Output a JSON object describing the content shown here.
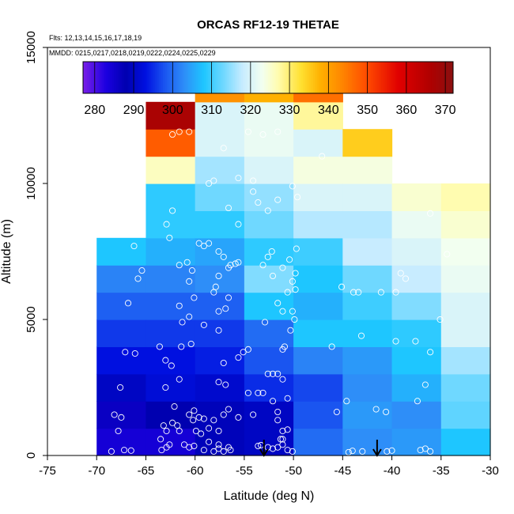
{
  "chart_data": {
    "type": "heatmap",
    "title": "ORCAS RF12-19 THETAE",
    "subtitle_flights": "Flts: 12,13,14,15,16,17,18,19",
    "subtitle_dates": "MMDD: 0215,0217,0218,0219,0222,0224,0225,0229",
    "xlabel": "Latitude (deg N)",
    "ylabel": "Altitude (m)",
    "xlim": [
      -75,
      -30
    ],
    "ylim": [
      0,
      15000
    ],
    "xticks": [
      -75,
      -70,
      -65,
      -60,
      -55,
      -50,
      -45,
      -40,
      -35,
      -30
    ],
    "xtick_labels": [
      "-75",
      "-70",
      "-65",
      "-60",
      "-55",
      "-50",
      "-45",
      "-40",
      "-35",
      "-30"
    ],
    "yticks": [
      0,
      5000,
      10000,
      15000
    ],
    "ytick_labels": [
      "0",
      "5000",
      "10000",
      "15000"
    ],
    "colorbar": {
      "min": 277,
      "max": 372,
      "ticks": [
        280,
        290,
        300,
        310,
        320,
        330,
        340,
        350,
        360,
        370
      ],
      "tick_labels": [
        "280",
        "290",
        "300",
        "310",
        "320",
        "330",
        "340",
        "350",
        "360",
        "370"
      ],
      "stops": [
        [
          277,
          "#7a1fe8"
        ],
        [
          283,
          "#1a00e0"
        ],
        [
          288,
          "#0000b0"
        ],
        [
          293,
          "#0010e0"
        ],
        [
          298,
          "#1a55f0"
        ],
        [
          303,
          "#2e8ef8"
        ],
        [
          308,
          "#1ec6ff"
        ],
        [
          313,
          "#6fd8ff"
        ],
        [
          318,
          "#c8ecff"
        ],
        [
          323,
          "#f2fff0"
        ],
        [
          327,
          "#fffcb0"
        ],
        [
          333,
          "#ffe030"
        ],
        [
          338,
          "#ffb000"
        ],
        [
          343,
          "#ff8a00"
        ],
        [
          350,
          "#ff4a00"
        ],
        [
          358,
          "#e00000"
        ],
        [
          366,
          "#b00000"
        ],
        [
          372,
          "#8a1010"
        ]
      ]
    },
    "bin_width_deg": 5,
    "bin_height_m": 1000,
    "columns": [
      {
        "x0": -70,
        "values": [
          284,
          286,
          290,
          293,
          296,
          299,
          302,
          308
        ]
      },
      {
        "x0": -65,
        "values": [
          284,
          288,
          292,
          293,
          296,
          299,
          302,
          306,
          309,
          309,
          326,
          348,
          367
        ]
      },
      {
        "x0": -60,
        "values": [
          289,
          289,
          291,
          294,
          296,
          299,
          303,
          305,
          309,
          313,
          316,
          320,
          320,
          342
        ]
      },
      {
        "x0": -55,
        "values": [
          290,
          290,
          295,
          298,
          300,
          308,
          314,
          309,
          313,
          315,
          320,
          322,
          322,
          338
        ]
      },
      {
        "x0": -50,
        "values": [
          300,
          298,
          297,
          302,
          308,
          306,
          308,
          310,
          317,
          320,
          324,
          320,
          328,
          346
        ]
      },
      {
        "x0": -45,
        "values": [
          303,
          304,
          303,
          304,
          308,
          310,
          313,
          318,
          317,
          320,
          324,
          335
        ]
      },
      {
        "x0": -40,
        "values": [
          304,
          303,
          306,
          308,
          309,
          314,
          318,
          320,
          322,
          325
        ]
      },
      {
        "x0": -35,
        "values": [
          308,
          312,
          313,
          316,
          320,
          320,
          322,
          323,
          325,
          327
        ]
      }
    ],
    "dropsonde_arrows": [
      -53,
      -41.5
    ],
    "scatter_points": [
      [
        -68.5,
        150
      ],
      [
        -67.2,
        200
      ],
      [
        -66.5,
        180
      ],
      [
        -67.8,
        900
      ],
      [
        -68.2,
        1500
      ],
      [
        -67.5,
        1400
      ],
      [
        -67.6,
        2500
      ],
      [
        -67.1,
        3800
      ],
      [
        -66.1,
        3750
      ],
      [
        -66.8,
        5600
      ],
      [
        -65.8,
        6500
      ],
      [
        -65.4,
        6800
      ],
      [
        -66.2,
        7700
      ],
      [
        -63.4,
        200
      ],
      [
        -62.9,
        300
      ],
      [
        -63.5,
        600
      ],
      [
        -62.6,
        400
      ],
      [
        -63.2,
        1100
      ],
      [
        -62.9,
        900
      ],
      [
        -62.3,
        1200
      ],
      [
        -62.1,
        1800
      ],
      [
        -61.8,
        1100
      ],
      [
        -61.6,
        900
      ],
      [
        -61.1,
        400
      ],
      [
        -60.6,
        300
      ],
      [
        -60.1,
        350
      ],
      [
        -61.6,
        2800
      ],
      [
        -62.4,
        3300
      ],
      [
        -63.0,
        3500
      ],
      [
        -61.4,
        4000
      ],
      [
        -60.4,
        4100
      ],
      [
        -61.3,
        4900
      ],
      [
        -60.6,
        5100
      ],
      [
        -61.6,
        5500
      ],
      [
        -63.6,
        4000
      ],
      [
        -63.0,
        2500
      ],
      [
        -60.6,
        1500
      ],
      [
        -60.2,
        1300
      ],
      [
        -60.1,
        1650
      ],
      [
        -59.6,
        1400
      ],
      [
        -59.1,
        1350
      ],
      [
        -59.9,
        900
      ],
      [
        -59.4,
        800
      ],
      [
        -58.6,
        500
      ],
      [
        -57.6,
        400
      ],
      [
        -56.6,
        300
      ],
      [
        -62.6,
        8000
      ],
      [
        -62.9,
        8500
      ],
      [
        -62.3,
        9000
      ],
      [
        -61.6,
        7000
      ],
      [
        -60.6,
        6400
      ],
      [
        -60.3,
        6800
      ],
      [
        -60.8,
        7100
      ],
      [
        -59.6,
        7800
      ],
      [
        -59.1,
        7700
      ],
      [
        -58.6,
        7800
      ],
      [
        -57.6,
        7500
      ],
      [
        -57.1,
        7300
      ],
      [
        -56.4,
        7000
      ],
      [
        -55.9,
        7050
      ],
      [
        -55.6,
        7100
      ],
      [
        -56.6,
        6900
      ],
      [
        -57.9,
        6200
      ],
      [
        -57.6,
        6600
      ],
      [
        -56.6,
        5800
      ],
      [
        -56.9,
        5400
      ],
      [
        -57.6,
        5300
      ],
      [
        -58.1,
        6000
      ],
      [
        -60.1,
        5800
      ],
      [
        -59.1,
        4800
      ],
      [
        -57.6,
        4600
      ],
      [
        -59.1,
        200
      ],
      [
        -58.1,
        150
      ],
      [
        -57.6,
        250
      ],
      [
        -57.1,
        150
      ],
      [
        -56.4,
        200
      ],
      [
        -58.6,
        1000
      ],
      [
        -57.6,
        900
      ],
      [
        -58.1,
        1300
      ],
      [
        -57.1,
        1500
      ],
      [
        -56.6,
        1700
      ],
      [
        -55.6,
        1400
      ],
      [
        -56.9,
        2600
      ],
      [
        -57.1,
        3400
      ],
      [
        -57.6,
        2700
      ],
      [
        -55.6,
        3600
      ],
      [
        -55.1,
        3800
      ],
      [
        -54.6,
        3900
      ],
      [
        -54.6,
        2300
      ],
      [
        -53.6,
        2300
      ],
      [
        -53.1,
        2300
      ],
      [
        -52.1,
        3000
      ],
      [
        -51.6,
        3000
      ],
      [
        -51.1,
        2800
      ],
      [
        -54.1,
        1500
      ],
      [
        -51.6,
        1300
      ],
      [
        -53.6,
        350
      ],
      [
        -53.3,
        380
      ],
      [
        -52.6,
        300
      ],
      [
        -52.1,
        250
      ],
      [
        -51.6,
        300
      ],
      [
        -51.1,
        400
      ],
      [
        -50.6,
        200
      ],
      [
        -50.1,
        150
      ],
      [
        -51.3,
        600
      ],
      [
        -51.1,
        900
      ],
      [
        -50.6,
        950
      ],
      [
        -51.1,
        600
      ],
      [
        -51.6,
        1600
      ],
      [
        -52.1,
        2000
      ],
      [
        -50.6,
        2100
      ],
      [
        -52.6,
        3000
      ],
      [
        -52.9,
        4900
      ],
      [
        -51.6,
        5600
      ],
      [
        -51.1,
        5300
      ],
      [
        -50.1,
        5300
      ],
      [
        -50.6,
        6000
      ],
      [
        -49.8,
        6100
      ],
      [
        -51.1,
        3900
      ],
      [
        -50.9,
        4000
      ],
      [
        -50.3,
        4600
      ],
      [
        -49.9,
        5000
      ],
      [
        -50.1,
        6400
      ],
      [
        -52.1,
        6600
      ],
      [
        -51.1,
        6900
      ],
      [
        -49.8,
        6700
      ],
      [
        -53.1,
        7000
      ],
      [
        -52.6,
        7300
      ],
      [
        -52.2,
        7500
      ],
      [
        -50.4,
        7200
      ],
      [
        -49.7,
        7600
      ],
      [
        -54.1,
        9700
      ],
      [
        -53.6,
        9300
      ],
      [
        -52.6,
        9000
      ],
      [
        -51.6,
        9400
      ],
      [
        -50.1,
        9900
      ],
      [
        -49.6,
        9500
      ],
      [
        -54.1,
        10100
      ],
      [
        -55.6,
        10200
      ],
      [
        -55.6,
        8500
      ],
      [
        -56.6,
        9100
      ],
      [
        -58.1,
        10100
      ],
      [
        -58.6,
        10000
      ],
      [
        -57.1,
        11300
      ],
      [
        -53.1,
        11800
      ],
      [
        -54.6,
        11900
      ],
      [
        -51.6,
        11900
      ],
      [
        -62.3,
        11800
      ],
      [
        -61.6,
        11900
      ],
      [
        -60.6,
        11900
      ],
      [
        -47.1,
        11000
      ],
      [
        -46.1,
        4000
      ],
      [
        -45.1,
        6200
      ],
      [
        -43.9,
        6000
      ],
      [
        -43.4,
        6000
      ],
      [
        -41.1,
        6000
      ],
      [
        -39.6,
        6000
      ],
      [
        -38.6,
        6500
      ],
      [
        -39.1,
        6700
      ],
      [
        -39.6,
        4200
      ],
      [
        -43.1,
        4400
      ],
      [
        -45.6,
        1600
      ],
      [
        -44.6,
        2000
      ],
      [
        -41.6,
        1700
      ],
      [
        -40.6,
        1600
      ],
      [
        -44.4,
        120
      ],
      [
        -44.0,
        170
      ],
      [
        -43.0,
        150
      ],
      [
        -40.5,
        150
      ],
      [
        -40.0,
        180
      ],
      [
        -37.1,
        200
      ],
      [
        -36.6,
        250
      ],
      [
        -36.1,
        150
      ],
      [
        -37.6,
        4200
      ],
      [
        -35.1,
        5000
      ],
      [
        -36.1,
        3800
      ],
      [
        -36.6,
        2600
      ],
      [
        -37.4,
        2000
      ],
      [
        -34.4,
        7400
      ],
      [
        -36.1,
        8900
      ]
    ]
  }
}
